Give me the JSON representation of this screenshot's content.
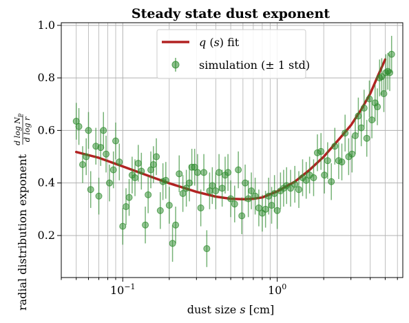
{
  "chart_data": {
    "type": "scatter",
    "title": "Steady state dust exponent",
    "xlabel": "dust size s [cm]",
    "ylabel": "radial distribution exponent d log Np / d log r",
    "xscale": "log",
    "xlim": [
      0.04,
      6.5
    ],
    "ylim": [
      0.04,
      1.01
    ],
    "grid": true,
    "legend_position": "top-center",
    "x_ticks": [
      {
        "value": 0.1,
        "base": "10",
        "exp": "−1"
      },
      {
        "value": 1,
        "base": "10",
        "exp": "0"
      }
    ],
    "y_ticks": [
      {
        "value": 0.2,
        "label": "0.2"
      },
      {
        "value": 0.4,
        "label": "0.4"
      },
      {
        "value": 0.6,
        "label": "0.6"
      },
      {
        "value": 0.8,
        "label": "0.8"
      },
      {
        "value": 1.0,
        "label": "1.0"
      }
    ],
    "series": [
      {
        "name": "q (s) fit",
        "kind": "line",
        "color": "#b22222",
        "x": [
          0.05,
          0.07,
          0.1,
          0.15,
          0.2,
          0.3,
          0.4,
          0.5,
          0.6,
          0.7,
          0.8,
          1.0,
          1.3,
          1.6,
          2.0,
          2.5,
          3.0,
          3.5,
          4.0,
          4.5,
          5.0
        ],
        "y": [
          0.518,
          0.496,
          0.463,
          0.425,
          0.399,
          0.366,
          0.348,
          0.34,
          0.338,
          0.34,
          0.345,
          0.368,
          0.405,
          0.447,
          0.5,
          0.565,
          0.62,
          0.68,
          0.74,
          0.81,
          0.87
        ]
      },
      {
        "name": "simulation (± 1 std)",
        "kind": "errorbar",
        "color": "#2e8b2e",
        "points": [
          [
            0.05,
            0.635,
            0.07
          ],
          [
            0.052,
            0.615,
            0.07
          ],
          [
            0.055,
            0.47,
            0.07
          ],
          [
            0.058,
            0.5,
            0.07
          ],
          [
            0.06,
            0.6,
            0.07
          ],
          [
            0.062,
            0.375,
            0.07
          ],
          [
            0.067,
            0.54,
            0.07
          ],
          [
            0.07,
            0.35,
            0.07
          ],
          [
            0.072,
            0.535,
            0.07
          ],
          [
            0.075,
            0.6,
            0.07
          ],
          [
            0.078,
            0.51,
            0.07
          ],
          [
            0.082,
            0.4,
            0.07
          ],
          [
            0.087,
            0.45,
            0.07
          ],
          [
            0.09,
            0.56,
            0.07
          ],
          [
            0.095,
            0.48,
            0.07
          ],
          [
            0.1,
            0.235,
            0.07
          ],
          [
            0.105,
            0.31,
            0.07
          ],
          [
            0.11,
            0.345,
            0.07
          ],
          [
            0.115,
            0.43,
            0.07
          ],
          [
            0.12,
            0.42,
            0.07
          ],
          [
            0.126,
            0.475,
            0.07
          ],
          [
            0.132,
            0.445,
            0.07
          ],
          [
            0.14,
            0.24,
            0.07
          ],
          [
            0.146,
            0.355,
            0.07
          ],
          [
            0.152,
            0.45,
            0.07
          ],
          [
            0.158,
            0.47,
            0.07
          ],
          [
            0.165,
            0.5,
            0.07
          ],
          [
            0.175,
            0.295,
            0.07
          ],
          [
            0.182,
            0.405,
            0.07
          ],
          [
            0.19,
            0.41,
            0.07
          ],
          [
            0.2,
            0.315,
            0.07
          ],
          [
            0.21,
            0.17,
            0.07
          ],
          [
            0.22,
            0.24,
            0.07
          ],
          [
            0.232,
            0.435,
            0.07
          ],
          [
            0.245,
            0.36,
            0.07
          ],
          [
            0.258,
            0.38,
            0.07
          ],
          [
            0.27,
            0.4,
            0.07
          ],
          [
            0.28,
            0.46,
            0.07
          ],
          [
            0.292,
            0.46,
            0.07
          ],
          [
            0.305,
            0.44,
            0.07
          ],
          [
            0.32,
            0.305,
            0.07
          ],
          [
            0.335,
            0.44,
            0.07
          ],
          [
            0.35,
            0.15,
            0.07
          ],
          [
            0.365,
            0.37,
            0.07
          ],
          [
            0.38,
            0.39,
            0.07
          ],
          [
            0.4,
            0.37,
            0.07
          ],
          [
            0.42,
            0.44,
            0.07
          ],
          [
            0.44,
            0.38,
            0.07
          ],
          [
            0.46,
            0.43,
            0.07
          ],
          [
            0.48,
            0.44,
            0.07
          ],
          [
            0.5,
            0.34,
            0.07
          ],
          [
            0.53,
            0.32,
            0.07
          ],
          [
            0.56,
            0.45,
            0.07
          ],
          [
            0.59,
            0.275,
            0.07
          ],
          [
            0.62,
            0.4,
            0.07
          ],
          [
            0.65,
            0.34,
            0.07
          ],
          [
            0.68,
            0.37,
            0.07
          ],
          [
            0.72,
            0.35,
            0.07
          ],
          [
            0.76,
            0.305,
            0.07
          ],
          [
            0.8,
            0.285,
            0.07
          ],
          [
            0.84,
            0.3,
            0.07
          ],
          [
            0.88,
            0.35,
            0.07
          ],
          [
            0.92,
            0.315,
            0.07
          ],
          [
            0.96,
            0.36,
            0.07
          ],
          [
            1.0,
            0.295,
            0.07
          ],
          [
            1.05,
            0.37,
            0.07
          ],
          [
            1.1,
            0.38,
            0.07
          ],
          [
            1.15,
            0.39,
            0.07
          ],
          [
            1.22,
            0.38,
            0.07
          ],
          [
            1.3,
            0.395,
            0.07
          ],
          [
            1.38,
            0.375,
            0.07
          ],
          [
            1.46,
            0.42,
            0.07
          ],
          [
            1.54,
            0.41,
            0.07
          ],
          [
            1.62,
            0.43,
            0.07
          ],
          [
            1.72,
            0.42,
            0.07
          ],
          [
            1.82,
            0.515,
            0.07
          ],
          [
            1.92,
            0.52,
            0.07
          ],
          [
            2.02,
            0.43,
            0.07
          ],
          [
            2.12,
            0.485,
            0.07
          ],
          [
            2.24,
            0.405,
            0.07
          ],
          [
            2.36,
            0.54,
            0.07
          ],
          [
            2.5,
            0.485,
            0.07
          ],
          [
            2.62,
            0.48,
            0.07
          ],
          [
            2.75,
            0.59,
            0.07
          ],
          [
            2.9,
            0.5,
            0.07
          ],
          [
            3.05,
            0.51,
            0.07
          ],
          [
            3.2,
            0.58,
            0.07
          ],
          [
            3.35,
            0.655,
            0.07
          ],
          [
            3.5,
            0.61,
            0.07
          ],
          [
            3.65,
            0.685,
            0.07
          ],
          [
            3.8,
            0.57,
            0.07
          ],
          [
            3.95,
            0.72,
            0.07
          ],
          [
            4.1,
            0.64,
            0.07
          ],
          [
            4.3,
            0.705,
            0.07
          ],
          [
            4.45,
            0.69,
            0.07
          ],
          [
            4.6,
            0.8,
            0.07
          ],
          [
            4.75,
            0.805,
            0.07
          ],
          [
            4.9,
            0.74,
            0.07
          ],
          [
            5.05,
            0.82,
            0.07
          ],
          [
            5.2,
            0.825,
            0.07
          ],
          [
            5.35,
            0.82,
            0.07
          ],
          [
            5.5,
            0.89,
            0.07
          ]
        ]
      }
    ]
  }
}
